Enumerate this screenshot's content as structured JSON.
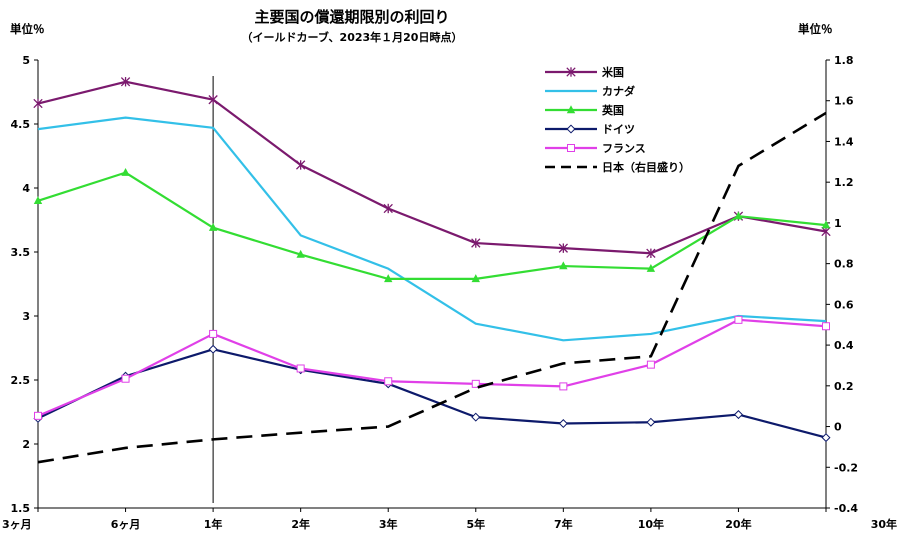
{
  "chart_data": {
    "type": "line",
    "title": "主要国の償還期限別の利回り",
    "subtitle": "（イールドカーブ、2023年１月20日時点）",
    "left_unit_label": "単位％",
    "right_unit_label": "単位％",
    "categories": [
      "3ヶ月",
      "6ヶ月",
      "1年",
      "2年",
      "3年",
      "5年",
      "7年",
      "10年",
      "20年",
      "30年"
    ],
    "y_left": {
      "min": 1.5,
      "max": 5,
      "ticks": [
        1.5,
        2,
        2.5,
        3,
        3.5,
        4,
        4.5,
        5
      ],
      "tick_labels": [
        "1.5",
        "2",
        "2.5",
        "3",
        "3.5",
        "4",
        "4.5",
        "5"
      ]
    },
    "y_right": {
      "min": -0.4,
      "max": 1.8,
      "ticks": [
        -0.4,
        -0.2,
        0,
        0.2,
        0.4,
        0.6,
        0.8,
        1,
        1.2,
        1.4,
        1.6,
        1.8
      ],
      "tick_labels": [
        "-0.4",
        "-0.2",
        "0",
        "0.2",
        "0.4",
        "0.6",
        "0.8",
        "1",
        "1.2",
        "1.4",
        "1.6",
        "1.8"
      ]
    },
    "reference_line_category": "1年",
    "series": [
      {
        "name": "米国",
        "color": "#7b1a6e",
        "marker": "star",
        "axis": "left",
        "dash": false,
        "values": [
          4.66,
          4.83,
          4.69,
          4.18,
          3.84,
          3.57,
          3.53,
          3.49,
          3.78,
          3.66
        ]
      },
      {
        "name": "カナダ",
        "color": "#33c0e8",
        "marker": "none",
        "axis": "left",
        "dash": false,
        "values": [
          4.46,
          4.55,
          4.47,
          3.63,
          3.37,
          2.94,
          2.81,
          2.86,
          3.0,
          2.96
        ]
      },
      {
        "name": "英国",
        "color": "#33dd33",
        "marker": "triangle",
        "axis": "left",
        "dash": false,
        "values": [
          3.9,
          4.12,
          3.69,
          3.48,
          3.29,
          3.29,
          3.39,
          3.37,
          3.78,
          3.71
        ]
      },
      {
        "name": "ドイツ",
        "color": "#0d1a6b",
        "marker": "diamond",
        "axis": "left",
        "dash": false,
        "values": [
          2.2,
          2.53,
          2.74,
          2.58,
          2.47,
          2.21,
          2.16,
          2.17,
          2.23,
          2.05
        ]
      },
      {
        "name": "フランス",
        "color": "#e040e8",
        "marker": "square",
        "axis": "left",
        "dash": false,
        "values": [
          2.22,
          2.51,
          2.86,
          2.59,
          2.49,
          2.47,
          2.45,
          2.62,
          2.97,
          2.92
        ]
      },
      {
        "name": "日本（右目盛り）",
        "color": "#000000",
        "marker": "none",
        "axis": "right",
        "dash": true,
        "values": [
          -0.175,
          -0.105,
          -0.063,
          -0.03,
          0.0,
          0.19,
          0.31,
          0.345,
          1.28,
          1.54
        ]
      }
    ]
  }
}
